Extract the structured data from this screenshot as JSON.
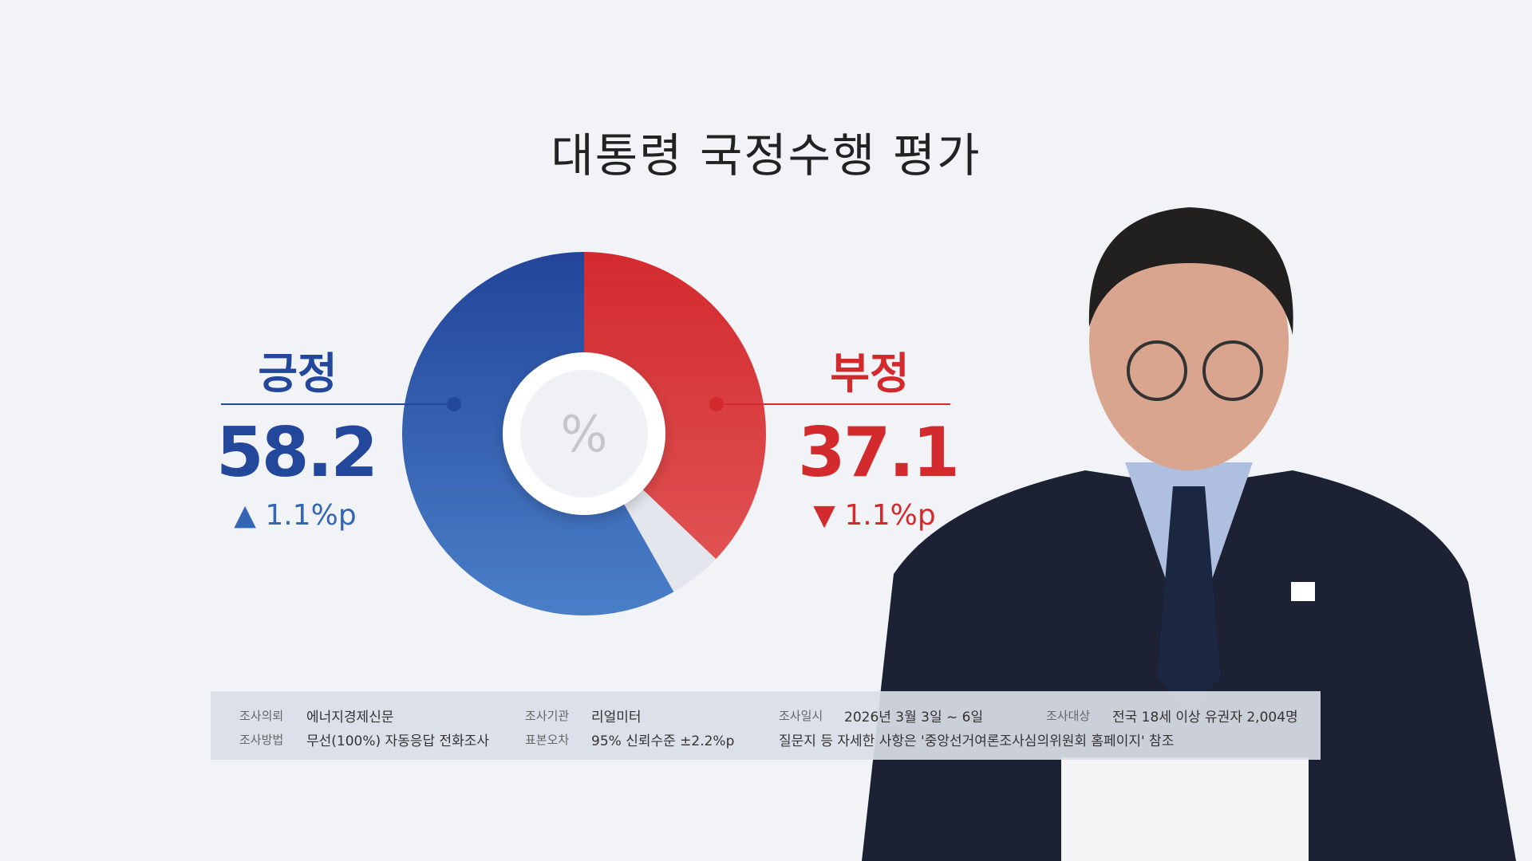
{
  "title": "대통령 국정수행 평가",
  "chart_data": {
    "type": "pie",
    "title": "대통령 국정수행 평가",
    "center_label": "%",
    "categories": [
      "긍정",
      "부정"
    ],
    "values": [
      58.2,
      37.1
    ],
    "remainder": 4.7,
    "colors": {
      "positive": "#2f5bb0",
      "negative": "#d63033",
      "remainder": "#e3e6ec"
    },
    "changes": [
      {
        "direction": "up",
        "text": "1.1%p"
      },
      {
        "direction": "down",
        "text": "1.1%p"
      }
    ]
  },
  "positive": {
    "label": "긍정",
    "value": "58.2",
    "change": "1.1%p"
  },
  "negative": {
    "label": "부정",
    "value": "37.1",
    "change": "1.1%p"
  },
  "footer": {
    "client_key": "조사의뢰",
    "client": "에너지경제신문",
    "agency_key": "조사기관",
    "agency": "리얼미터",
    "date_key": "조사일시",
    "date": "2026년 3월 3일 ~ 6일",
    "target_key": "조사대상",
    "target": "전국 18세 이상 유권자 2,004명",
    "method_key": "조사방법",
    "method": "무선(100%) 자동응답 전화조사",
    "error_key": "표본오차",
    "error": "95% 신뢰수준 ±2.2%p",
    "note": "질문지 등 자세한 사항은 '중앙선거여론조사심의위원회 홈페이지' 참조"
  }
}
